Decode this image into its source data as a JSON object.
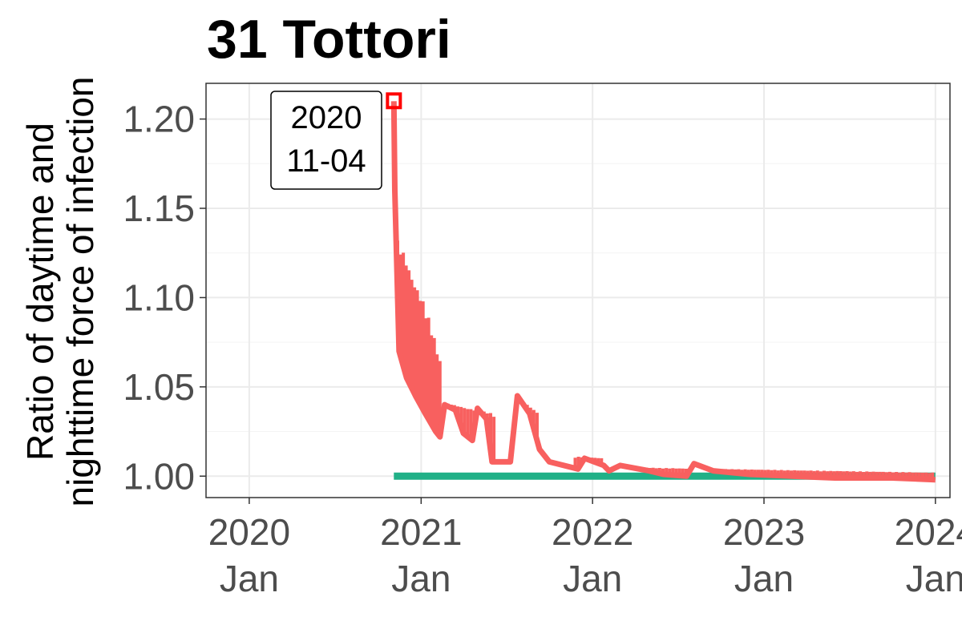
{
  "chart_data": {
    "type": "line",
    "title": "31 Tottori",
    "xlabel": "",
    "ylabel": [
      "Ratio of daytime and",
      "nighttime force of infection"
    ],
    "xlim": [
      "2019-10-01",
      "2024-02-01"
    ],
    "ylim": [
      0.988,
      1.22
    ],
    "grid": true,
    "legend": "none",
    "x_ticks": [
      {
        "date": "2020-01-01",
        "year": "2020",
        "month": "Jan"
      },
      {
        "date": "2021-01-01",
        "year": "2021",
        "month": "Jan"
      },
      {
        "date": "2022-01-01",
        "year": "2022",
        "month": "Jan"
      },
      {
        "date": "2023-01-01",
        "year": "2023",
        "month": "Jan"
      },
      {
        "date": "2024-01-01",
        "year": "2024",
        "month": "Jan"
      }
    ],
    "y_ticks": [
      "1.00",
      "1.05",
      "1.10",
      "1.15",
      "1.20"
    ],
    "series": [
      {
        "color": "#f8605f",
        "style": "oscillating",
        "points": [
          [
            "2020-11-04",
            1.21
          ],
          [
            "2020-11-06",
            1.16
          ],
          [
            "2020-11-15",
            1.07
          ],
          [
            "2020-12-01",
            1.055
          ],
          [
            "2020-12-20",
            1.045
          ],
          [
            "2021-01-10",
            1.035
          ],
          [
            "2021-02-01",
            1.025
          ],
          [
            "2021-02-10",
            1.022
          ],
          [
            "2021-02-20",
            1.04
          ],
          [
            "2021-03-15",
            1.037
          ],
          [
            "2021-04-01",
            1.024
          ],
          [
            "2021-04-20",
            1.02
          ],
          [
            "2021-05-01",
            1.038
          ],
          [
            "2021-05-20",
            1.032
          ],
          [
            "2021-06-01",
            1.008
          ],
          [
            "2021-07-10",
            1.008
          ],
          [
            "2021-07-25",
            1.045
          ],
          [
            "2021-08-20",
            1.035
          ],
          [
            "2021-09-10",
            1.015
          ],
          [
            "2021-10-01",
            1.008
          ],
          [
            "2021-12-01",
            1.004
          ],
          [
            "2021-12-15",
            1.01
          ],
          [
            "2022-01-25",
            1.006
          ],
          [
            "2022-02-05",
            1.003
          ],
          [
            "2022-03-01",
            1.006
          ],
          [
            "2022-05-01",
            1.003
          ],
          [
            "2022-06-01",
            1.001
          ],
          [
            "2022-07-20",
            1.0
          ],
          [
            "2022-08-05",
            1.007
          ],
          [
            "2022-09-15",
            1.003
          ],
          [
            "2022-12-01",
            1.001
          ],
          [
            "2023-03-01",
            1.0
          ],
          [
            "2023-06-01",
            0.999
          ],
          [
            "2023-10-01",
            0.999
          ],
          [
            "2024-01-01",
            0.998
          ]
        ],
        "bands": [
          {
            "from": "2020-11-06",
            "to": "2021-02-10",
            "high": [
              1.135,
              1.125,
              1.11,
              1.1,
              1.085,
              1.065
            ],
            "period_days": 6
          },
          {
            "from": "2021-02-20",
            "to": "2021-06-05",
            "high": [
              1.041,
              1.038,
              1.035
            ],
            "period_days": 7
          },
          {
            "from": "2021-07-25",
            "to": "2021-09-05",
            "high": [
              1.044,
              1.036
            ],
            "period_days": 7
          },
          {
            "from": "2021-11-25",
            "to": "2022-01-25",
            "high": [
              1.011,
              1.01
            ],
            "period_days": 7
          },
          {
            "from": "2022-03-01",
            "to": "2023-12-31",
            "high": [
              1.005,
              1.002
            ],
            "period_days": 7
          }
        ]
      },
      {
        "color": "#21b087",
        "style": "flat",
        "points": [
          [
            "2020-11-04",
            1.0
          ],
          [
            "2024-01-01",
            1.0
          ]
        ]
      }
    ],
    "annotation": {
      "date": "2020-11-04",
      "value": 1.21,
      "lines": [
        "2020",
        "11-04"
      ]
    }
  }
}
